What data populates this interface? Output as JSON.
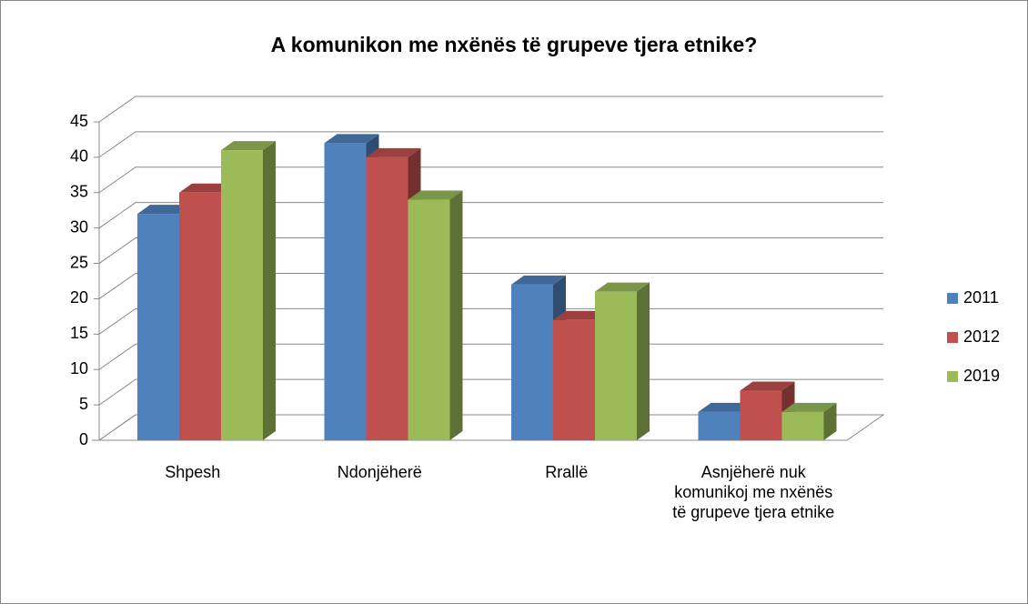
{
  "chart_data": {
    "type": "bar3d",
    "title": "A komunikon me nxënës të grupeve tjera etnike?",
    "categories": [
      "Shpesh",
      "Ndonjëherë",
      "Rrallë",
      "Asnjëherë nuk komunikoj me nxënës të grupeve tjera etnike"
    ],
    "series": [
      {
        "name": "2011",
        "color": "#4f81bd",
        "values": [
          32,
          42,
          22,
          4
        ]
      },
      {
        "name": "2012",
        "color": "#c0504d",
        "values": [
          35,
          40,
          17,
          7
        ]
      },
      {
        "name": "2019",
        "color": "#9bbb59",
        "values": [
          41,
          34,
          21,
          4
        ]
      }
    ],
    "ylim": [
      0,
      45
    ],
    "yticks": [
      0,
      5,
      10,
      15,
      20,
      25,
      30,
      35,
      40,
      45
    ],
    "grid": true,
    "legend": "right"
  }
}
